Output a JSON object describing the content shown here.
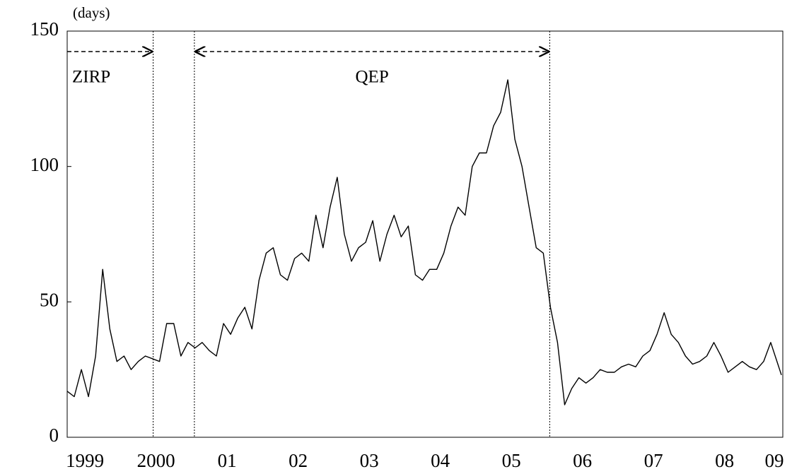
{
  "chart_data": {
    "type": "line",
    "y_label": "(days)",
    "x": [
      1999.4,
      1999.5,
      1999.6,
      1999.7,
      1999.8,
      1999.9,
      2000.0,
      2000.1,
      2000.2,
      2000.3,
      2000.4,
      2000.5,
      2000.6,
      2000.7,
      2000.8,
      2000.9,
      2001.0,
      2001.1,
      2001.2,
      2001.3,
      2001.4,
      2001.5,
      2001.6,
      2001.7,
      2001.8,
      2001.9,
      2002.0,
      2002.1,
      2002.2,
      2002.3,
      2002.4,
      2002.5,
      2002.6,
      2002.7,
      2002.8,
      2002.9,
      2003.0,
      2003.1,
      2003.2,
      2003.3,
      2003.4,
      2003.5,
      2003.6,
      2003.7,
      2003.8,
      2003.9,
      2004.0,
      2004.1,
      2004.2,
      2004.3,
      2004.4,
      2004.5,
      2004.6,
      2004.7,
      2004.8,
      2004.9,
      2005.0,
      2005.1,
      2005.2,
      2005.3,
      2005.4,
      2005.5,
      2005.6,
      2005.7,
      2005.8,
      2005.9,
      2006.0,
      2006.1,
      2006.2,
      2006.3,
      2006.4,
      2006.5,
      2006.6,
      2006.7,
      2006.8,
      2006.9,
      2007.0,
      2007.1,
      2007.2,
      2007.3,
      2007.4,
      2007.5,
      2007.6,
      2007.7,
      2007.8,
      2007.9,
      2008.0,
      2008.1,
      2008.2,
      2008.3,
      2008.4,
      2008.5,
      2008.6,
      2008.7,
      2008.8,
      2008.9,
      2009.0,
      2009.1,
      2009.2,
      2009.3,
      2009.4,
      2009.45
    ],
    "series": [
      {
        "color": "#000000",
        "values": [
          17,
          15,
          25,
          15,
          30,
          62,
          40,
          28,
          30,
          25,
          28,
          30,
          29,
          28,
          42,
          42,
          30,
          35,
          33,
          35,
          32,
          30,
          42,
          38,
          44,
          48,
          40,
          58,
          68,
          70,
          60,
          58,
          66,
          68,
          65,
          82,
          70,
          85,
          96,
          75,
          65,
          70,
          72,
          80,
          65,
          75,
          82,
          74,
          78,
          60,
          58,
          62,
          62,
          68,
          78,
          85,
          82,
          100,
          105,
          105,
          115,
          120,
          132,
          110,
          100,
          85,
          70,
          68,
          48,
          35,
          12,
          18,
          22,
          20,
          22,
          25,
          24,
          24,
          26,
          27,
          26,
          30,
          32,
          38,
          46,
          38,
          35,
          30,
          27,
          28,
          30,
          35,
          30,
          24,
          26,
          28,
          26,
          25,
          28,
          35,
          27,
          23
        ]
      }
    ],
    "xlim": [
      1999.4,
      2009.47
    ],
    "xticks": [
      {
        "value": 1999.65,
        "label": "1999"
      },
      {
        "value": 2000.65,
        "label": "2000"
      },
      {
        "value": 2001.65,
        "label": "01"
      },
      {
        "value": 2002.65,
        "label": "02"
      },
      {
        "value": 2003.65,
        "label": "03"
      },
      {
        "value": 2004.65,
        "label": "04"
      },
      {
        "value": 2005.65,
        "label": "05"
      },
      {
        "value": 2006.65,
        "label": "06"
      },
      {
        "value": 2007.65,
        "label": "07"
      },
      {
        "value": 2008.65,
        "label": "08"
      },
      {
        "value": 2009.35,
        "label": "09"
      }
    ],
    "ylim": [
      0,
      150
    ],
    "yticks": [
      0,
      50,
      100,
      150
    ],
    "periods": [
      {
        "label": "ZIRP",
        "start": 1999.4,
        "end": 2000.61
      },
      {
        "label": "QEP",
        "start": 2001.19,
        "end": 2006.19
      }
    ]
  }
}
